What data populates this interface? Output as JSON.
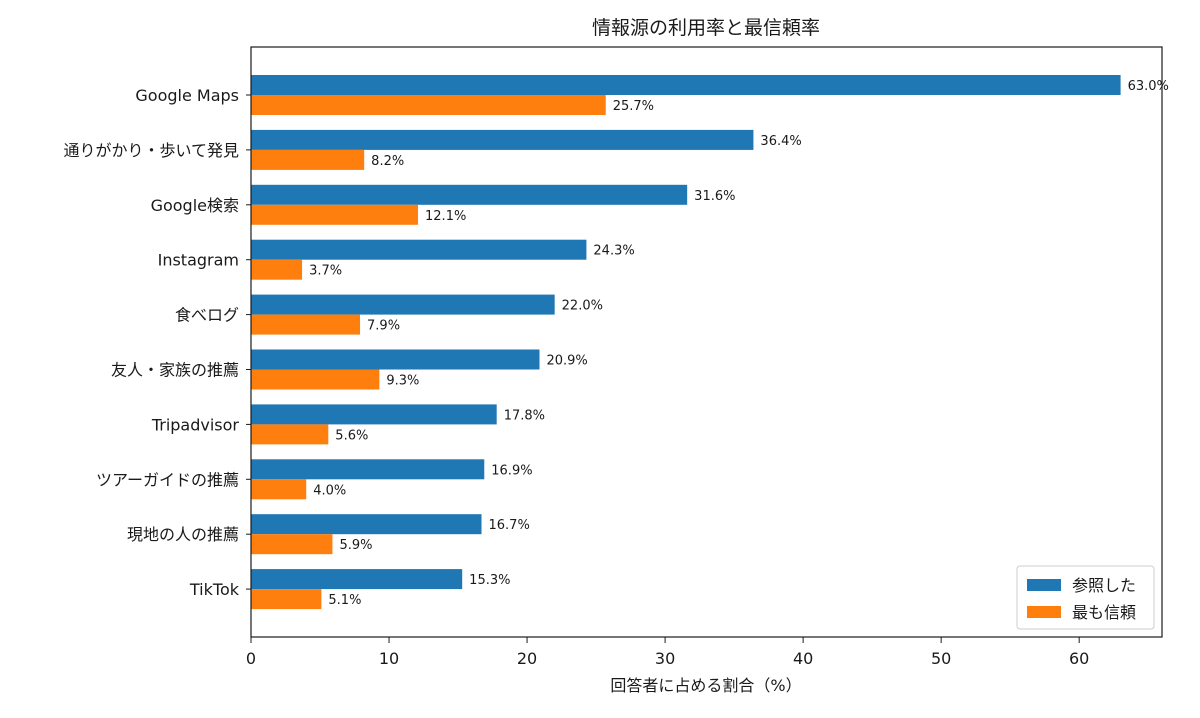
{
  "chart_data": {
    "type": "bar",
    "orientation": "horizontal",
    "title": "情報源の利用率と最信頼率",
    "xlabel": "回答者に占める割合（%）",
    "ylabel": "",
    "xlim": [
      0,
      66
    ],
    "xticks": [
      0,
      10,
      20,
      30,
      40,
      50,
      60
    ],
    "grid": false,
    "legend_position": "bottom-right",
    "categories": [
      "Google Maps",
      "通りがかり・歩いて発見",
      "Google検索",
      "Instagram",
      "食べログ",
      "友人・家族の推薦",
      "Tripadvisor",
      "ツアーガイドの推薦",
      "現地の人の推薦",
      "TikTok"
    ],
    "series": [
      {
        "name": "参照した",
        "color": "#1f77b4",
        "values": [
          63.0,
          36.4,
          31.6,
          24.3,
          22.0,
          20.9,
          17.8,
          16.9,
          16.7,
          15.3
        ],
        "labels": [
          "63.0%",
          "36.4%",
          "31.6%",
          "24.3%",
          "22.0%",
          "20.9%",
          "17.8%",
          "16.9%",
          "16.7%",
          "15.3%"
        ]
      },
      {
        "name": "最も信頼",
        "color": "#ff7f0e",
        "values": [
          25.7,
          8.2,
          12.1,
          3.7,
          7.9,
          9.3,
          5.6,
          4.0,
          5.9,
          5.1
        ],
        "labels": [
          "25.7%",
          "8.2%",
          "12.1%",
          "3.7%",
          "7.9%",
          "9.3%",
          "5.6%",
          "4.0%",
          "5.9%",
          "5.1%"
        ]
      }
    ]
  }
}
